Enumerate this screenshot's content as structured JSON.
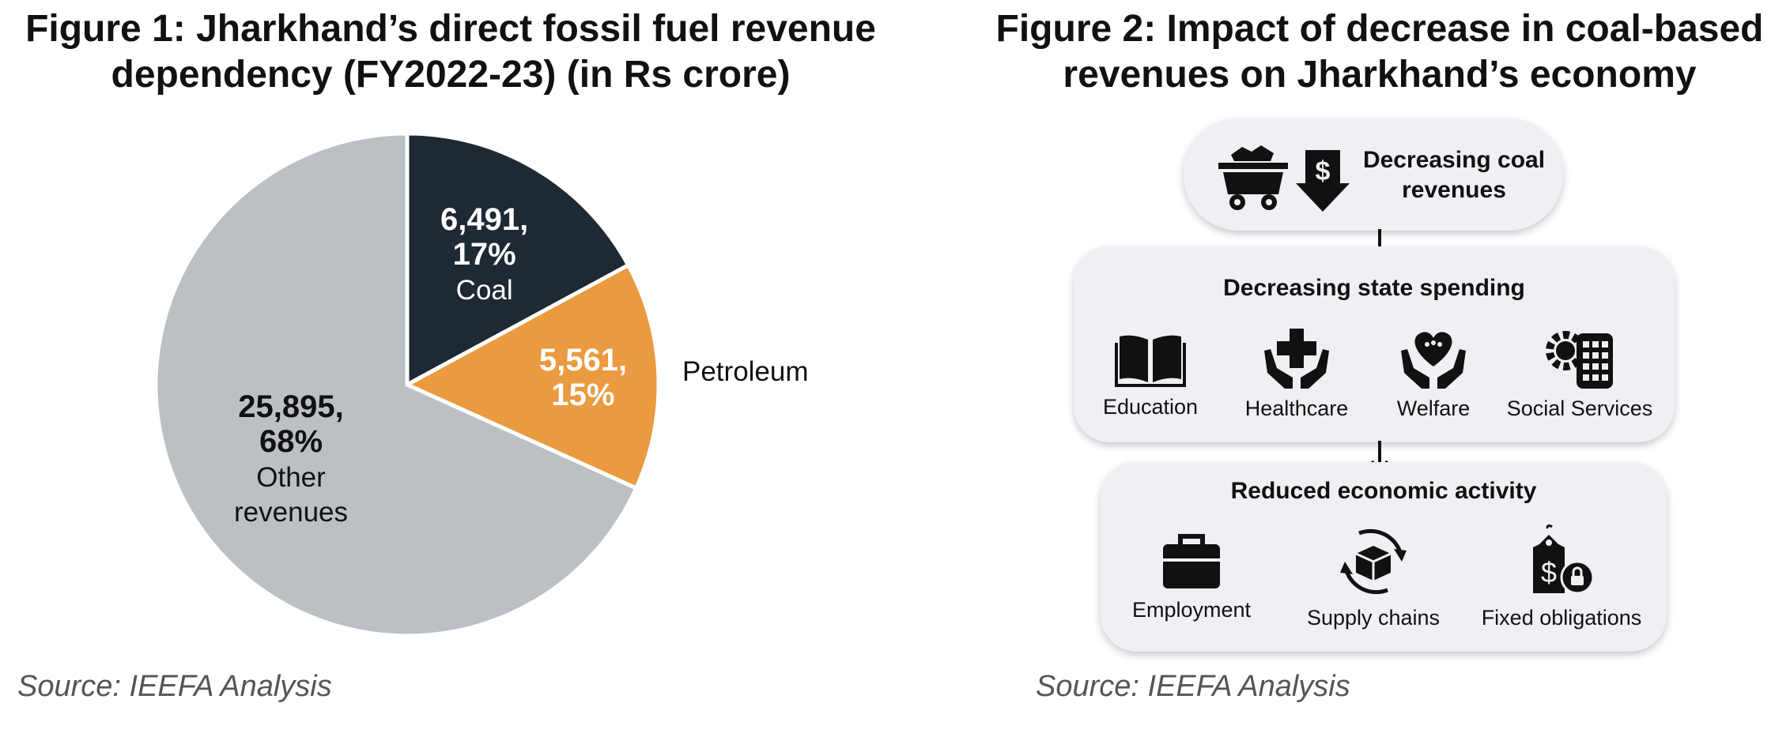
{
  "figure1": {
    "title_line1": "Figure 1: Jharkhand’s direct fossil fuel revenue",
    "title_line2": "dependency (FY2022-23) (in Rs crore)",
    "source": "Source: IEEFA Analysis"
  },
  "chart_data": {
    "type": "pie",
    "title": "Figure 1: Jharkhand’s direct fossil fuel revenue dependency (FY2022-23) (in Rs crore)",
    "slices": [
      {
        "name": "Coal",
        "value": 6491,
        "value_label": "6,491,",
        "percent_label": "17%",
        "color": "#1f2933"
      },
      {
        "name": "Petroleum",
        "value": 5561,
        "value_label": "5,561,",
        "percent_label": "15%",
        "color": "#ea9a3f"
      },
      {
        "name_line1": "Other",
        "name_line2": "revenues",
        "value": 25895,
        "value_label": "25,895,",
        "percent_label": "68%",
        "color": "#bcc0c5"
      }
    ]
  },
  "figure2": {
    "title_line1": "Figure 2: Impact of decrease in coal-based",
    "title_line2": "revenues on Jharkhand’s economy",
    "source": "Source: IEEFA Analysis",
    "coal_box": {
      "line1": "Decreasing coal",
      "line2": "revenues",
      "icons": [
        "coal-cart-icon",
        "dollar-down-arrow-icon"
      ]
    },
    "spending_box": {
      "title": "Decreasing state spending",
      "items": [
        {
          "label": "Education",
          "icon": "book-icon"
        },
        {
          "label": "Healthcare",
          "icon": "medical-cross-hands-icon"
        },
        {
          "label": "Welfare",
          "icon": "heart-hands-icon"
        },
        {
          "label": "Social Services",
          "icon": "gear-building-icon"
        }
      ]
    },
    "economy_box": {
      "title": "Reduced economic activity",
      "items": [
        {
          "label": "Employment",
          "icon": "briefcase-icon"
        },
        {
          "label": "Supply chains",
          "icon": "box-cycle-icon"
        },
        {
          "label": "Fixed obligations",
          "icon": "price-tag-lock-icon"
        }
      ]
    },
    "colors": {
      "box_fill": "#eef0f3",
      "icon": "#111111"
    }
  }
}
